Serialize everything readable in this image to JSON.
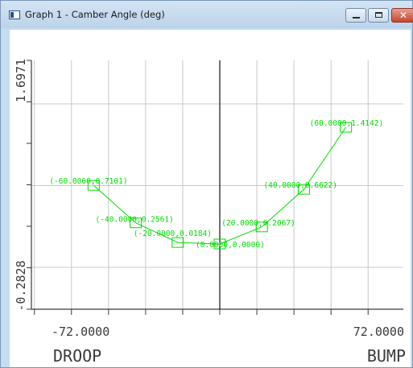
{
  "window": {
    "title": "Graph 1 - Camber Angle (deg)",
    "icon": "graph-window-icon",
    "controls": [
      "minimize-icon",
      "maximize-icon",
      "close-icon"
    ],
    "close_glyph": "✕"
  },
  "colors": {
    "series": "#00dd00",
    "grid": "#c8c8c8",
    "axes": "#3a3a3a"
  },
  "chart_data": {
    "type": "line",
    "x": [
      -60,
      -40,
      -20,
      0,
      20,
      40,
      60
    ],
    "y": [
      0.7101,
      0.2561,
      0.0184,
      0.0,
      0.2067,
      0.6622,
      1.4142
    ],
    "point_labels": [
      "(-60.0000,0.7101)",
      "(-40.0000,0.2561)",
      "(-20.0000,0.0184)",
      "(0.0000,0.0000)",
      "(20.0000,0.2067)",
      "(40.0000,0.6622)",
      "(60.0000,1.4142)"
    ],
    "xlim": [
      -72,
      72
    ],
    "ylim": [
      -0.2828,
      1.6971
    ],
    "x_tick_labels": [
      "-72.0000",
      "72.0000"
    ],
    "y_tick_labels": [
      "1.6971",
      "-0.2828"
    ],
    "x_end_labels": {
      "left": "DROOP",
      "right": "BUMP"
    },
    "grid": true,
    "marker": "square"
  }
}
